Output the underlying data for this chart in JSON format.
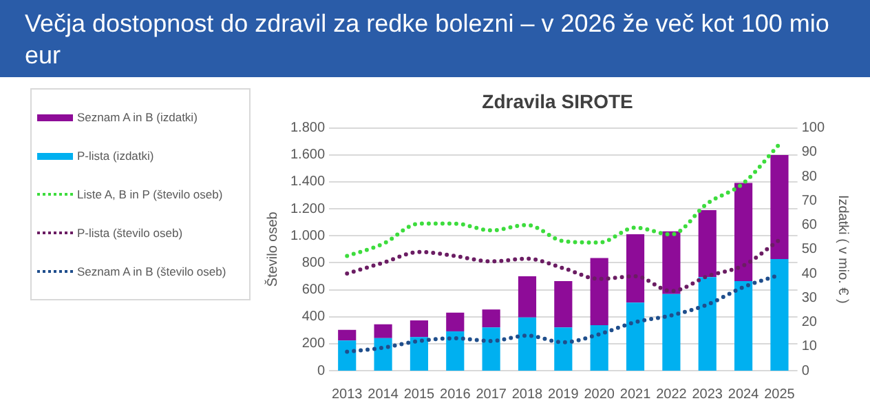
{
  "chart_data": {
    "type": "bar",
    "title": "Večja dostopnost do zdravil za redke bolezni – v 2026 že več kot 100 mio eur",
    "subtitle": "Zdravila SIROTE",
    "ylabel": "Število oseb",
    "y2label": "Izdatki ( v mio. € )",
    "categories": [
      "2013",
      "2014",
      "2015",
      "2016",
      "2017",
      "2018",
      "2019",
      "2020",
      "2021",
      "2022",
      "2023",
      "2024",
      "2025"
    ],
    "stacked": true,
    "grid": "y",
    "legend": "left",
    "ylim": [
      0,
      1800
    ],
    "yticks": [
      {
        "value": 0,
        "label": "0"
      },
      {
        "value": 200,
        "label": "200"
      },
      {
        "value": 400,
        "label": "400"
      },
      {
        "value": 600,
        "label": "600"
      },
      {
        "value": 800,
        "label": "800"
      },
      {
        "value": 1000,
        "label": "1.000"
      },
      {
        "value": 1200,
        "label": "1.200"
      },
      {
        "value": 1400,
        "label": "1.400"
      },
      {
        "value": 1600,
        "label": "1.600"
      },
      {
        "value": 1800,
        "label": "1.800"
      }
    ],
    "y2lim": [
      0,
      100
    ],
    "y2ticks": [
      0,
      10,
      20,
      30,
      40,
      50,
      60,
      70,
      80,
      90,
      100
    ],
    "series": [
      {
        "name": "P-lista (izdatki)",
        "axis": "y2",
        "color": "#00b0f0",
        "values": [
          12.4,
          13.4,
          13.8,
          16.2,
          17.8,
          21.9,
          17.8,
          18.7,
          28.0,
          31.6,
          38.5,
          36.9,
          46.0
        ]
      },
      {
        "name": "Seznam A in B (izdatki)",
        "axis": "y2",
        "color": "#8e0c98",
        "values": [
          4.4,
          5.7,
          6.9,
          7.7,
          7.4,
          17.0,
          19.1,
          27.7,
          28.2,
          25.8,
          27.6,
          40.4,
          42.8
        ]
      },
      {
        "name": "Liste  A, B in P (število oseb)",
        "type": "line",
        "color": "#3ddc3d",
        "line_style": "dotted",
        "marker": "none",
        "values": [
          850,
          940,
          1090,
          1090,
          1040,
          1080,
          960,
          950,
          1060,
          1010,
          1240,
          1390,
          1680
        ]
      },
      {
        "name": "P-lista (število oseb)",
        "type": "line",
        "color": "#6b1d63",
        "line_style": "dotted",
        "marker": "none",
        "values": [
          720,
          800,
          880,
          850,
          810,
          830,
          760,
          680,
          700,
          590,
          700,
          780,
          970
        ]
      },
      {
        "name": "Seznam A in B (število oseb)",
        "type": "line",
        "color": "#1f4e8c",
        "line_style": "dotted",
        "marker": "none",
        "values": [
          140,
          170,
          220,
          240,
          220,
          260,
          210,
          270,
          360,
          410,
          490,
          620,
          710
        ]
      }
    ]
  }
}
